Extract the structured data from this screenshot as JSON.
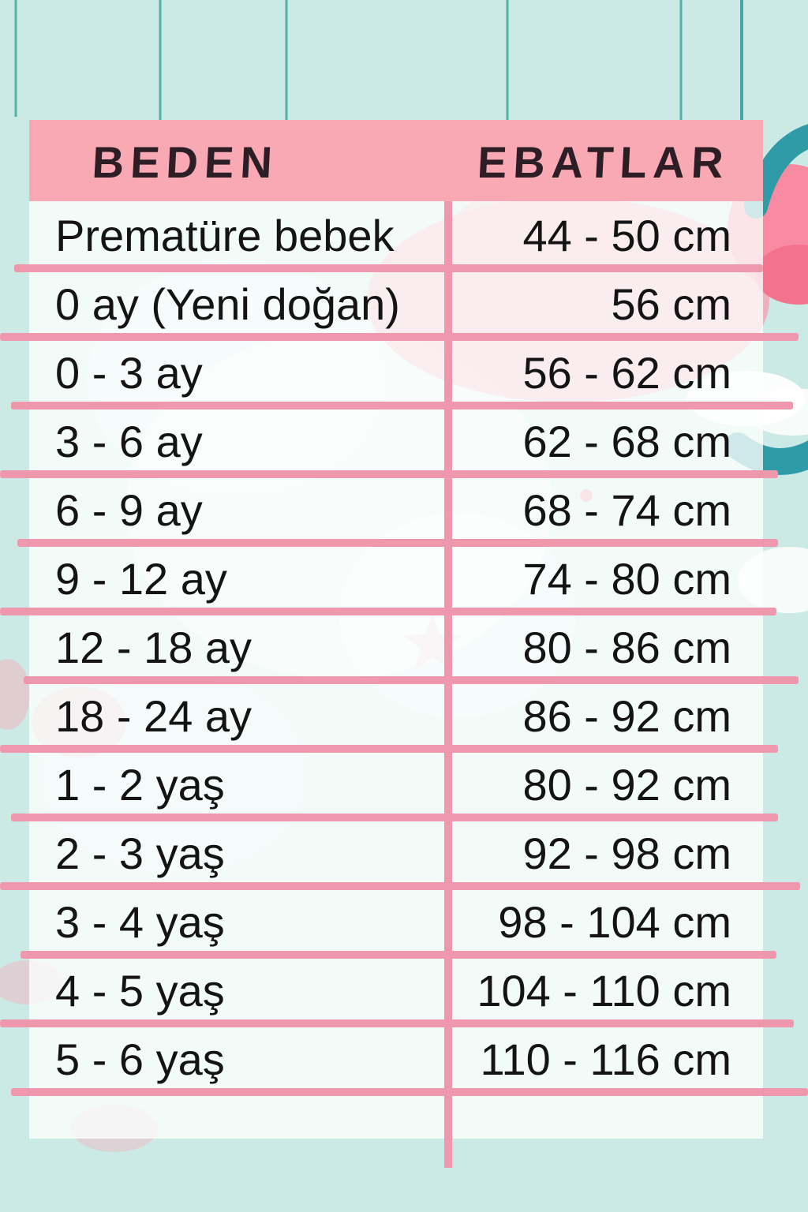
{
  "chart_data": {
    "type": "table",
    "columns": [
      "BEDEN",
      "EBATLAR"
    ],
    "rows": [
      [
        "Prematüre bebek",
        "44 - 50 cm"
      ],
      [
        "0 ay (Yeni doğan)",
        "56 cm"
      ],
      [
        "0 - 3 ay",
        "56 - 62 cm"
      ],
      [
        "3 - 6 ay",
        "62 - 68 cm"
      ],
      [
        "6 - 9 ay",
        "68 - 74 cm"
      ],
      [
        "9 - 12 ay",
        "74 - 80 cm"
      ],
      [
        "12 - 18 ay",
        "80 - 86 cm"
      ],
      [
        "18 - 24 ay",
        "86 - 92 cm"
      ],
      [
        "1 - 2 yaş",
        "80 - 92 cm"
      ],
      [
        "2 - 3 yaş",
        "92 - 98 cm"
      ],
      [
        "3 - 4 yaş",
        "98 - 104 cm"
      ],
      [
        "4 - 5 yaş",
        "104 - 110 cm"
      ],
      [
        "5 - 6 yaş",
        "110 - 116 cm"
      ]
    ]
  },
  "table": {
    "headers": {
      "size": "BEDEN",
      "dimensions": "EBATLAR"
    },
    "rows": [
      {
        "beden": "Prematüre bebek",
        "ebat": "44 - 50 cm"
      },
      {
        "beden": "0 ay (Yeni doğan)",
        "ebat": "56 cm"
      },
      {
        "beden": "0 - 3 ay",
        "ebat": "56 - 62 cm"
      },
      {
        "beden": "3 - 6 ay",
        "ebat": "62 - 68 cm"
      },
      {
        "beden": "6 - 9 ay",
        "ebat": "68 - 74 cm"
      },
      {
        "beden": "9 - 12 ay",
        "ebat": "74 - 80 cm"
      },
      {
        "beden": "12 - 18 ay",
        "ebat": "80 - 86 cm"
      },
      {
        "beden": "18 - 24 ay",
        "ebat": "86 - 92 cm"
      },
      {
        "beden": "1 - 2 yaş",
        "ebat": "80 - 92 cm"
      },
      {
        "beden": "2 - 3 yaş",
        "ebat": "92 - 98 cm"
      },
      {
        "beden": "3 - 4 yaş",
        "ebat": "98 - 104 cm"
      },
      {
        "beden": "4 - 5 yaş",
        "ebat": "104 - 110 cm"
      },
      {
        "beden": "5 - 6 yaş",
        "ebat": "110 - 116 cm"
      }
    ]
  },
  "colors": {
    "background_mint": "#cbeae5",
    "header_pink": "#f9a9b4",
    "grid_pink": "#ef97ac",
    "row_white": "#fdfffe",
    "text_dark": "#141414",
    "header_text": "#2d1d24",
    "decor_teal": "#2f9ba6",
    "decor_pink": "#f88ba1"
  },
  "decor_shapes": [
    "teal-string-line",
    "pink-balloon-blob",
    "teal-wing-arc",
    "white-cloud",
    "teal-wave-arc",
    "pink-star",
    "pink-dot"
  ]
}
